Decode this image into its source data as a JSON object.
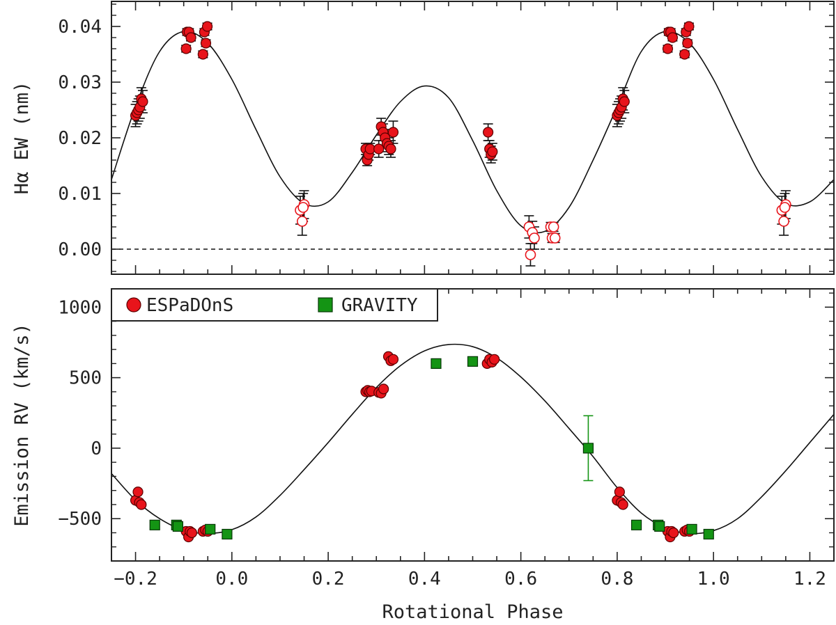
{
  "chart_data": [
    {
      "type": "scatter",
      "panel": "top",
      "xlabel": "",
      "ylabel": "Hα EW (nm)",
      "xlim": [
        -0.25,
        1.25
      ],
      "ylim": [
        -0.0045,
        0.0445
      ],
      "x_ticks": [
        -0.2,
        0.0,
        0.2,
        0.4,
        0.6,
        0.8,
        1.0,
        1.2
      ],
      "y_ticks": [
        0.0,
        0.01,
        0.02,
        0.03,
        0.04
      ],
      "y_tick_labels": [
        "0.00",
        "0.01",
        "0.02",
        "0.03",
        "0.04"
      ],
      "reference_line": {
        "y": 0.0,
        "style": "dashed"
      },
      "model_curve": {
        "x": [
          -0.25,
          -0.2,
          -0.15,
          -0.1,
          -0.05,
          0.0,
          0.05,
          0.1,
          0.15,
          0.2,
          0.25,
          0.3,
          0.35,
          0.4,
          0.45,
          0.5,
          0.55,
          0.6,
          0.65,
          0.7,
          0.75,
          0.8,
          0.85,
          0.9,
          0.95,
          1.0,
          1.05,
          1.1,
          1.15,
          1.2,
          1.25
        ],
        "y": [
          0.0125,
          0.0256,
          0.0355,
          0.0391,
          0.037,
          0.0305,
          0.0215,
          0.013,
          0.0082,
          0.0085,
          0.0138,
          0.0205,
          0.0265,
          0.0293,
          0.0272,
          0.0195,
          0.0105,
          0.0042,
          0.0032,
          0.0075,
          0.016,
          0.0256,
          0.0355,
          0.0391,
          0.037,
          0.0305,
          0.0215,
          0.013,
          0.0082,
          0.0085,
          0.0125
        ]
      },
      "series": [
        {
          "name": "",
          "marker": "filled-circle",
          "color": "#e8141b",
          "points": [
            {
              "x": -0.2,
              "y": 0.024,
              "err": 0.002
            },
            {
              "x": -0.197,
              "y": 0.0245,
              "err": 0.002
            },
            {
              "x": -0.194,
              "y": 0.025,
              "err": 0.002
            },
            {
              "x": -0.191,
              "y": 0.0255,
              "err": 0.002
            },
            {
              "x": -0.188,
              "y": 0.027,
              "err": 0.002
            },
            {
              "x": -0.185,
              "y": 0.0265,
              "err": 0.002
            },
            {
              "x": -0.095,
              "y": 0.036,
              "err": 0.0006
            },
            {
              "x": -0.093,
              "y": 0.039,
              "err": 0.0006
            },
            {
              "x": -0.089,
              "y": 0.039,
              "err": 0.0006
            },
            {
              "x": -0.085,
              "y": 0.038,
              "err": 0.0006
            },
            {
              "x": -0.06,
              "y": 0.035,
              "err": 0.0006
            },
            {
              "x": -0.057,
              "y": 0.039,
              "err": 0.0006
            },
            {
              "x": -0.054,
              "y": 0.037,
              "err": 0.0006
            },
            {
              "x": -0.051,
              "y": 0.04,
              "err": 0.0006
            },
            {
              "x": 0.278,
              "y": 0.018,
              "err": 0.001
            },
            {
              "x": 0.281,
              "y": 0.016,
              "err": 0.001
            },
            {
              "x": 0.284,
              "y": 0.017,
              "err": 0.001
            },
            {
              "x": 0.287,
              "y": 0.018,
              "err": 0.001
            },
            {
              "x": 0.305,
              "y": 0.018,
              "err": 0.0015
            },
            {
              "x": 0.31,
              "y": 0.022,
              "err": 0.0015
            },
            {
              "x": 0.314,
              "y": 0.021,
              "err": 0.0015
            },
            {
              "x": 0.318,
              "y": 0.02,
              "err": 0.0015
            },
            {
              "x": 0.322,
              "y": 0.019,
              "err": 0.0015
            },
            {
              "x": 0.326,
              "y": 0.0185,
              "err": 0.0015
            },
            {
              "x": 0.33,
              "y": 0.018,
              "err": 0.0015
            },
            {
              "x": 0.335,
              "y": 0.021,
              "err": 0.002
            },
            {
              "x": 0.532,
              "y": 0.021,
              "err": 0.0015
            },
            {
              "x": 0.535,
              "y": 0.018,
              "err": 0.0015
            },
            {
              "x": 0.538,
              "y": 0.017,
              "err": 0.0015
            },
            {
              "x": 0.541,
              "y": 0.0175,
              "err": 0.0015
            },
            {
              "x": 0.8,
              "y": 0.024,
              "err": 0.002
            },
            {
              "x": 0.803,
              "y": 0.0245,
              "err": 0.002
            },
            {
              "x": 0.806,
              "y": 0.025,
              "err": 0.002
            },
            {
              "x": 0.809,
              "y": 0.0255,
              "err": 0.002
            },
            {
              "x": 0.812,
              "y": 0.027,
              "err": 0.002
            },
            {
              "x": 0.815,
              "y": 0.0265,
              "err": 0.002
            },
            {
              "x": 0.905,
              "y": 0.036,
              "err": 0.0006
            },
            {
              "x": 0.907,
              "y": 0.039,
              "err": 0.0006
            },
            {
              "x": 0.911,
              "y": 0.039,
              "err": 0.0006
            },
            {
              "x": 0.915,
              "y": 0.038,
              "err": 0.0006
            },
            {
              "x": 0.94,
              "y": 0.035,
              "err": 0.0006
            },
            {
              "x": 0.943,
              "y": 0.039,
              "err": 0.0006
            },
            {
              "x": 0.946,
              "y": 0.037,
              "err": 0.0006
            },
            {
              "x": 0.949,
              "y": 0.04,
              "err": 0.0006
            }
          ]
        },
        {
          "name": "",
          "marker": "open-circle",
          "color": "#e8141b",
          "points": [
            {
              "x": 0.142,
              "y": 0.007,
              "err": 0.0025
            },
            {
              "x": 0.146,
              "y": 0.005,
              "err": 0.0025
            },
            {
              "x": 0.15,
              "y": 0.008,
              "err": 0.0025
            },
            {
              "x": 0.148,
              "y": 0.0075,
              "err": 0.0025
            },
            {
              "x": 0.617,
              "y": 0.004,
              "err": 0.002
            },
            {
              "x": 0.62,
              "y": -0.001,
              "err": 0.002
            },
            {
              "x": 0.624,
              "y": 0.003,
              "err": 0.002
            },
            {
              "x": 0.628,
              "y": 0.002,
              "err": 0.002
            },
            {
              "x": 0.662,
              "y": 0.004,
              "err": 0.0008
            },
            {
              "x": 0.665,
              "y": 0.002,
              "err": 0.0008
            },
            {
              "x": 0.668,
              "y": 0.004,
              "err": 0.0008
            },
            {
              "x": 0.671,
              "y": 0.002,
              "err": 0.0008
            },
            {
              "x": 1.142,
              "y": 0.007,
              "err": 0.0025
            },
            {
              "x": 1.146,
              "y": 0.005,
              "err": 0.0025
            },
            {
              "x": 1.15,
              "y": 0.008,
              "err": 0.0025
            },
            {
              "x": 1.148,
              "y": 0.0075,
              "err": 0.0025
            }
          ]
        }
      ]
    },
    {
      "type": "scatter",
      "panel": "bottom",
      "xlabel": "Rotational Phase",
      "ylabel": "Emission RV (km/s)",
      "xlim": [
        -0.25,
        1.25
      ],
      "ylim": [
        -800,
        1130
      ],
      "x_ticks": [
        -0.2,
        0.0,
        0.2,
        0.4,
        0.6,
        0.8,
        1.0,
        1.2
      ],
      "x_tick_labels": [
        "−0.2",
        "0.0",
        "0.2",
        "0.4",
        "0.6",
        "0.8",
        "1.0",
        "1.2"
      ],
      "y_ticks": [
        -500,
        0,
        500,
        1000
      ],
      "y_tick_labels": [
        "−500",
        "0",
        "500",
        "1000"
      ],
      "legend": {
        "placement": "top-left",
        "entries": [
          {
            "label": "ESPaDOnS",
            "marker": "filled-circle",
            "color": "#e8141b"
          },
          {
            "label": "GRAVITY",
            "marker": "square",
            "color": "#149414"
          }
        ]
      },
      "model_curve": {
        "x": [
          -0.25,
          -0.2,
          -0.15,
          -0.1,
          -0.05,
          0.0,
          0.05,
          0.1,
          0.15,
          0.2,
          0.25,
          0.3,
          0.35,
          0.4,
          0.45,
          0.5,
          0.55,
          0.6,
          0.65,
          0.7,
          0.75,
          0.8,
          0.85,
          0.9,
          0.95,
          1.0,
          1.05,
          1.1,
          1.15,
          1.2,
          1.25
        ],
        "y": [
          -180,
          -368,
          -500,
          -582,
          -605,
          -578,
          -488,
          -335,
          -152,
          40,
          240,
          430,
          585,
          690,
          735,
          720,
          640,
          505,
          335,
          140,
          -60,
          -280,
          -460,
          -565,
          -605,
          -585,
          -500,
          -345,
          -160,
          40,
          240
        ]
      },
      "series": [
        {
          "name": "ESPaDOnS",
          "marker": "filled-circle",
          "color": "#e8141b",
          "points": [
            {
              "x": -0.2,
              "y": -370
            },
            {
              "x": -0.195,
              "y": -310
            },
            {
              "x": -0.192,
              "y": -385
            },
            {
              "x": -0.188,
              "y": -400
            },
            {
              "x": -0.095,
              "y": -590
            },
            {
              "x": -0.09,
              "y": -630
            },
            {
              "x": -0.087,
              "y": -590
            },
            {
              "x": -0.083,
              "y": -600
            },
            {
              "x": -0.06,
              "y": -590
            },
            {
              "x": -0.055,
              "y": -580
            },
            {
              "x": -0.05,
              "y": -590
            },
            {
              "x": 0.278,
              "y": 400
            },
            {
              "x": 0.282,
              "y": 410
            },
            {
              "x": 0.286,
              "y": 400
            },
            {
              "x": 0.29,
              "y": 405
            },
            {
              "x": 0.305,
              "y": 395
            },
            {
              "x": 0.31,
              "y": 390
            },
            {
              "x": 0.315,
              "y": 420
            },
            {
              "x": 0.325,
              "y": 650
            },
            {
              "x": 0.33,
              "y": 620
            },
            {
              "x": 0.335,
              "y": 630
            },
            {
              "x": 0.53,
              "y": 600
            },
            {
              "x": 0.535,
              "y": 630
            },
            {
              "x": 0.54,
              "y": 610
            },
            {
              "x": 0.545,
              "y": 630
            },
            {
              "x": 0.8,
              "y": -370
            },
            {
              "x": 0.805,
              "y": -310
            },
            {
              "x": 0.808,
              "y": -385
            },
            {
              "x": 0.812,
              "y": -400
            },
            {
              "x": 0.905,
              "y": -590
            },
            {
              "x": 0.91,
              "y": -630
            },
            {
              "x": 0.913,
              "y": -590
            },
            {
              "x": 0.917,
              "y": -600
            },
            {
              "x": 0.94,
              "y": -590
            },
            {
              "x": 0.945,
              "y": -580
            },
            {
              "x": 0.95,
              "y": -590
            }
          ]
        },
        {
          "name": "GRAVITY",
          "marker": "square",
          "color": "#149414",
          "points": [
            {
              "x": -0.16,
              "y": -545
            },
            {
              "x": -0.115,
              "y": -545
            },
            {
              "x": -0.112,
              "y": -555
            },
            {
              "x": -0.045,
              "y": -575
            },
            {
              "x": -0.01,
              "y": -610
            },
            {
              "x": 0.424,
              "y": 600
            },
            {
              "x": 0.5,
              "y": 615
            },
            {
              "x": 0.74,
              "y": 0,
              "err": 230
            },
            {
              "x": 0.84,
              "y": -545
            },
            {
              "x": 0.885,
              "y": -545
            },
            {
              "x": 0.888,
              "y": -555
            },
            {
              "x": 0.955,
              "y": -575
            },
            {
              "x": 0.99,
              "y": -610
            }
          ]
        }
      ]
    }
  ]
}
